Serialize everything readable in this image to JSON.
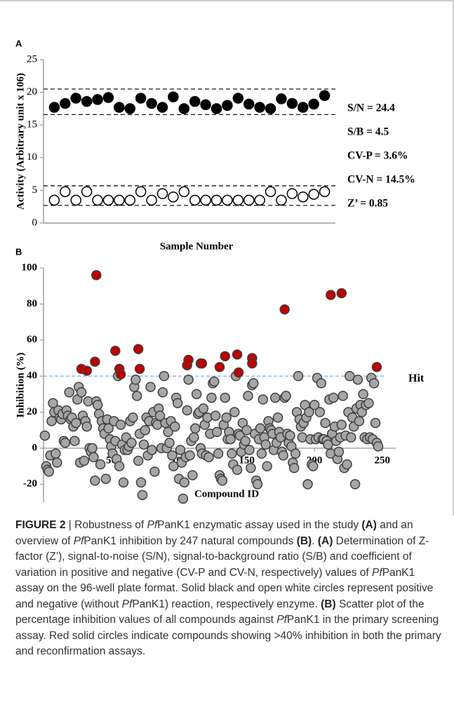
{
  "chart_data": [
    {
      "type": "scatter",
      "panel_label": "A",
      "ylabel": "Activity (Arbitrary unit x 106)",
      "xlabel": "Sample Number",
      "xlim": [
        0,
        27
      ],
      "ylim": [
        0,
        25
      ],
      "yticks": [
        0,
        5,
        10,
        15,
        20,
        25
      ],
      "ref_lines": [
        20.5,
        16.6,
        5.7,
        2.7
      ],
      "annotations": [
        "S/N = 24.4",
        "S/B = 4.5",
        "CV-P = 3.6%",
        "CV-N = 14.5%",
        "Z’ = 0.85"
      ],
      "series": [
        {
          "color": "#000000",
          "edge": "#000000",
          "x": [
            1,
            2,
            3,
            4,
            5,
            6,
            7,
            8,
            9,
            10,
            11,
            12,
            13,
            14,
            15,
            16,
            17,
            18,
            19,
            20,
            21,
            22,
            23,
            24,
            25,
            26
          ],
          "values": [
            17.7,
            18.3,
            19.1,
            18.6,
            18.9,
            19.2,
            17.7,
            17.5,
            19.1,
            18.3,
            17.7,
            19.3,
            17.5,
            18.6,
            18.1,
            17.5,
            18,
            19.1,
            18.2,
            17.7,
            17.5,
            19,
            18.3,
            17.7,
            18.2,
            19.5
          ]
        },
        {
          "color": "#ffffff",
          "edge": "#000000",
          "x": [
            1,
            2,
            3,
            4,
            5,
            6,
            7,
            8,
            9,
            10,
            11,
            12,
            13,
            14,
            15,
            16,
            17,
            18,
            19,
            20,
            21,
            22,
            23,
            24,
            25,
            26
          ],
          "values": [
            3.5,
            4.8,
            3.5,
            4.8,
            3.5,
            3.5,
            3.5,
            3.5,
            4.8,
            3.5,
            4.5,
            4,
            4.8,
            3.5,
            3.5,
            3.5,
            3.5,
            3.5,
            3.5,
            3.5,
            4.8,
            3.5,
            4.5,
            4,
            4.4,
            4.8
          ]
        }
      ]
    },
    {
      "type": "scatter",
      "panel_label": "B",
      "ylabel": "Inhibition (%)",
      "xlabel": "Compound ID",
      "xlim": [
        0,
        260
      ],
      "ylim": [
        -30,
        100
      ],
      "yticks": [
        -20,
        0,
        20,
        40,
        60,
        80,
        100
      ],
      "xticks": [
        50,
        100,
        150,
        200,
        250
      ],
      "hline": 40,
      "hline_label": "Hit",
      "hline_color": "#5b9bd5",
      "series": [
        {
          "color": "#a6a6a6",
          "edge": "#404040",
          "x": [
            1,
            2,
            3,
            4,
            5,
            6,
            7,
            8,
            9,
            10,
            11,
            12,
            13,
            14,
            15,
            16,
            17,
            18,
            19,
            20,
            21,
            22,
            23,
            24,
            25,
            26,
            27,
            28,
            29,
            30,
            31,
            32,
            33,
            34,
            35,
            36,
            37,
            38,
            39,
            40,
            41,
            42,
            43,
            44,
            45,
            46,
            47,
            48,
            49,
            50,
            51,
            52,
            53,
            54,
            55,
            56,
            57,
            58,
            59,
            60,
            61,
            62,
            63,
            64,
            65,
            66,
            67,
            68,
            69,
            70,
            71,
            72,
            73,
            74,
            75,
            76,
            77,
            78,
            79,
            80,
            81,
            82,
            83,
            84,
            85,
            86,
            87,
            88,
            89,
            90,
            91,
            92,
            93,
            94,
            95,
            96,
            97,
            98,
            99,
            100,
            101,
            102,
            103,
            104,
            105,
            106,
            107,
            108,
            109,
            110,
            111,
            112,
            113,
            114,
            115,
            116,
            117,
            118,
            119,
            120,
            121,
            122,
            123,
            124,
            125,
            126,
            127,
            128,
            129,
            130,
            131,
            132,
            133,
            134,
            135,
            136,
            137,
            138,
            139,
            140,
            141,
            142,
            143,
            144,
            145,
            146,
            147,
            148,
            149,
            150,
            151,
            152,
            153,
            154,
            155,
            156,
            157,
            158,
            159,
            160,
            161,
            162,
            163,
            164,
            165,
            166,
            167,
            168,
            169,
            170,
            171,
            172,
            173,
            174,
            175,
            176,
            177,
            178,
            179,
            180,
            181,
            182,
            183,
            184,
            185,
            186,
            187,
            188,
            189,
            190,
            191,
            192,
            193,
            194,
            195,
            196,
            197,
            198,
            199,
            200,
            201,
            202,
            203,
            204,
            205,
            206,
            207,
            208,
            209,
            210,
            211,
            212,
            213,
            214,
            215,
            216,
            217,
            218,
            219,
            220,
            221,
            222,
            223,
            224,
            225,
            226,
            227,
            228,
            229,
            230,
            231,
            232,
            233,
            234,
            235,
            236,
            237,
            238,
            239,
            240,
            241,
            242,
            243,
            244,
            245,
            246,
            247
          ],
          "values": [
            7,
            -10,
            -12,
            -13,
            -4,
            15,
            25,
            20,
            -3,
            -8,
            21,
            17,
            16,
            19,
            4,
            3,
            21,
            18,
            31,
            16,
            17,
            12,
            4,
            14,
            27,
            34,
            -8,
            31,
            18,
            -7,
            15,
            12,
            26,
            0,
            -2,
            0,
            -5,
            -18,
            26,
            24,
            19,
            -9,
            15,
            11,
            8,
            -17,
            16,
            11,
            5,
            1,
            -3,
            15,
            4,
            -6,
            40,
            -10,
            13,
            2,
            -19,
            -1,
            6,
            -1,
            1,
            15,
            3,
            17,
            34,
            38,
            29,
            -7,
            8,
            -19,
            -26,
            2,
            10,
            17,
            -4,
            15,
            34,
            -1,
            20,
            -13,
            14,
            13,
            22,
            18,
            0,
            31,
            40,
            14,
            0,
            9,
            3,
            15,
            -4,
            -10,
            12,
            28,
            25,
            -17,
            -1,
            -8,
            -28,
            -19,
            -5,
            21,
            38,
            -4,
            4,
            -15,
            6,
            11,
            30,
            19,
            20,
            0,
            -3,
            22,
            13,
            -4,
            17,
            -5,
            8,
            28,
            36,
            37,
            18,
            9,
            -3,
            -15,
            -17,
            -18,
            13,
            28,
            17,
            5,
            9,
            5,
            -3,
            -9,
            20,
            40,
            -12,
            8,
            7,
            -2,
            14,
            2,
            4,
            10,
            29,
            -1,
            -11,
            35,
            36,
            8,
            -18,
            -20,
            5,
            11,
            -3,
            27,
            6,
            2,
            -10,
            15,
            11,
            10,
            8,
            -1,
            28,
            3,
            17,
            9,
            6,
            -2,
            -4,
            28,
            29,
            8,
            3,
            7,
            1,
            -8,
            -11,
            -3,
            20,
            40,
            16,
            12,
            6,
            14,
            24,
            17,
            -20,
            20,
            5,
            -9,
            -10,
            24,
            5,
            39,
            6,
            20,
            36,
            5,
            5,
            14,
            4,
            2,
            27,
            -3,
            8,
            28,
            12,
            4,
            -6,
            -2,
            6,
            13,
            29,
            -11,
            7,
            -9,
            20,
            40,
            6,
            17,
            12,
            -20,
            22,
            38,
            15,
            24,
            20,
            30,
            6,
            24,
            5,
            25,
            6,
            39,
            5,
            36,
            14,
            3,
            1
          ]
        },
        {
          "color": "#c00000",
          "edge": "#404040",
          "x": [
            28,
            32,
            38,
            39,
            53,
            56,
            57,
            70,
            71,
            106,
            107,
            116,
            117,
            130,
            134,
            143,
            144,
            154,
            154,
            178,
            212,
            220,
            246
          ],
          "values": [
            44,
            43,
            48,
            96,
            54,
            44,
            41,
            55,
            44,
            46,
            49,
            47,
            47,
            45,
            51,
            52,
            42,
            50,
            47,
            77,
            85,
            86,
            45
          ]
        }
      ]
    }
  ],
  "caption": [
    {
      "text": "FIGURE 2",
      "style": "bold"
    },
    {
      "text": " | Robustness of "
    },
    {
      "text": "Pf",
      "style": "italic"
    },
    {
      "text": "PanK1 enzymatic assay used in the study "
    },
    {
      "text": "(A)",
      "style": "bold"
    },
    {
      "text": " and an overview of "
    },
    {
      "text": "Pf",
      "style": "italic"
    },
    {
      "text": "PanK1 inhibition by 247 natural compounds "
    },
    {
      "text": "(B)",
      "style": "bold"
    },
    {
      "text": ". "
    },
    {
      "text": "(A)",
      "style": "bold"
    },
    {
      "text": " Determination of Z-factor (Z’), signal-to-noise (S/N), signal-to-background ratio (S/B) and coefficient of variation in positive and negative (CV-P and CV-N, respectively) values of "
    },
    {
      "text": "Pf",
      "style": "italic"
    },
    {
      "text": "PanK1 assay on the 96-well plate format. Solid black and open white circles represent positive and negative (without "
    },
    {
      "text": "Pf",
      "style": "italic"
    },
    {
      "text": "PanK1) reaction, respectively enzyme. "
    },
    {
      "text": "(B)",
      "style": "bold"
    },
    {
      "text": " Scatter plot of the percentage inhibition values of all compounds against "
    },
    {
      "text": "Pf",
      "style": "italic"
    },
    {
      "text": "PanK1 in the primary screening assay. Red solid circles indicate compounds showing >40% inhibition in both the primary and reconfirmation assays."
    }
  ]
}
